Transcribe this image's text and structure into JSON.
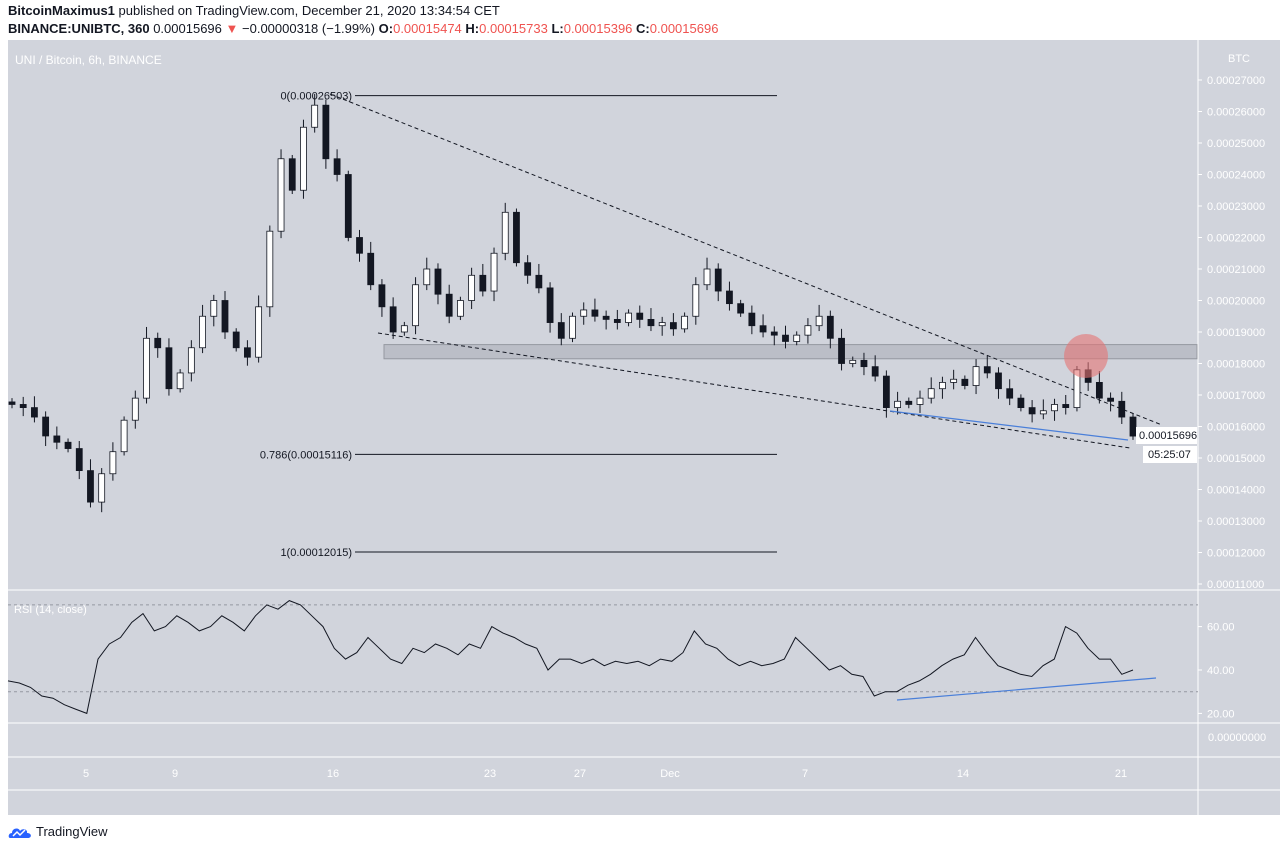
{
  "header": {
    "publisher": "BitcoinMaximus1",
    "published": " published on TradingView.com, December 21, 2020 13:34:54 CET",
    "symbol": "BINANCE:UNIBTC, 360",
    "last": "0.00015696",
    "change": "−0.00000318 (−1.99%)",
    "o_label": "O:",
    "o": "0.00015474",
    "h_label": "H:",
    "h": "0.00015733",
    "l_label": "L:",
    "l": "0.00015396",
    "c_label": "C:",
    "c": "0.00015696"
  },
  "footer": {
    "brand": "TradingView"
  },
  "colors": {
    "bg": "#d1d4dc",
    "down": "#ef5350",
    "candle_up": "#ffffff",
    "candle_down": "#131722",
    "trend_blue": "#4a7fd9",
    "highlight": "#e57373"
  },
  "chart_data": {
    "type": "candlestick",
    "title": "UNI / Bitcoin, 6h, BINANCE",
    "y_unit": "BTC",
    "ylim": [
      0.00011,
      0.00027
    ],
    "y_ticks": [
      "0.00027000",
      "0.00026000",
      "0.00025000",
      "0.00024000",
      "0.00023000",
      "0.00022000",
      "0.00021000",
      "0.00020000",
      "0.00019000",
      "0.00018000",
      "0.00017000",
      "0.00016000",
      "0.00015000",
      "0.00014000",
      "0.00013000",
      "0.00012000",
      "0.00011000"
    ],
    "x_ticks": [
      "5",
      "9",
      "16",
      "23",
      "27",
      "Dec",
      "7",
      "14",
      "21"
    ],
    "last_price_label": "0.00015696",
    "countdown": "05:25:07",
    "closes": [
      16700,
      16600,
      16300,
      15700,
      15500,
      15300,
      14600,
      13600,
      14500,
      15200,
      16200,
      16900,
      18800,
      18500,
      17200,
      17700,
      18500,
      19500,
      20000,
      19000,
      18500,
      18200,
      19800,
      22200,
      24500,
      23500,
      25500,
      26200,
      24500,
      24000,
      22000,
      21500,
      20500,
      19800,
      19000,
      19200,
      20500,
      21000,
      20200,
      19500,
      20000,
      20800,
      20300,
      21500,
      22800,
      21200,
      20800,
      20400,
      19300,
      18800,
      19500,
      19700,
      19500,
      19400,
      19300,
      19600,
      19400,
      19200,
      19300,
      19100,
      19500,
      20500,
      21000,
      20300,
      19900,
      19600,
      19200,
      19000,
      18900,
      18700,
      18900,
      19200,
      19500,
      18800,
      18000,
      18100,
      17900,
      17600,
      16600,
      16800,
      16700,
      16900,
      17200,
      17400,
      17500,
      17300,
      17900,
      17700,
      17200,
      16900,
      16600,
      16400,
      16500,
      16700,
      16600,
      17800,
      17400,
      16900,
      16800,
      16300,
      15696
    ],
    "close_scale": "1e-8 BTC",
    "fib_levels": [
      {
        "label": "0(0.00026503)",
        "value": 0.00026503
      },
      {
        "label": "0.786(0.00015116)",
        "value": 0.00015116
      },
      {
        "label": "1(0.00012015)",
        "value": 0.00012015
      }
    ],
    "resistance_zone": [
      0.0001815,
      0.000186
    ],
    "rsi": {
      "label": "RSI (14, close)",
      "ticks": [
        "60.00",
        "40.00",
        "20.00"
      ],
      "bands": [
        70,
        30
      ],
      "values": [
        35,
        34,
        32,
        28,
        27,
        24,
        22,
        20,
        45,
        52,
        55,
        62,
        66,
        58,
        60,
        65,
        62,
        58,
        60,
        65,
        62,
        58,
        65,
        70,
        68,
        72,
        70,
        65,
        60,
        50,
        45,
        48,
        55,
        50,
        45,
        43,
        50,
        48,
        52,
        50,
        47,
        52,
        50,
        60,
        57,
        55,
        52,
        50,
        40,
        45,
        45,
        43,
        45,
        42,
        44,
        43,
        44,
        42,
        45,
        44,
        48,
        58,
        52,
        50,
        45,
        42,
        44,
        42,
        43,
        45,
        55,
        50,
        45,
        40,
        42,
        38,
        37,
        28,
        30,
        30,
        33,
        35,
        38,
        42,
        45,
        47,
        55,
        48,
        42,
        40,
        38,
        37,
        42,
        45,
        60,
        57,
        50,
        45,
        45,
        38,
        40
      ]
    },
    "extra_pane_tick": "0.00000000"
  }
}
